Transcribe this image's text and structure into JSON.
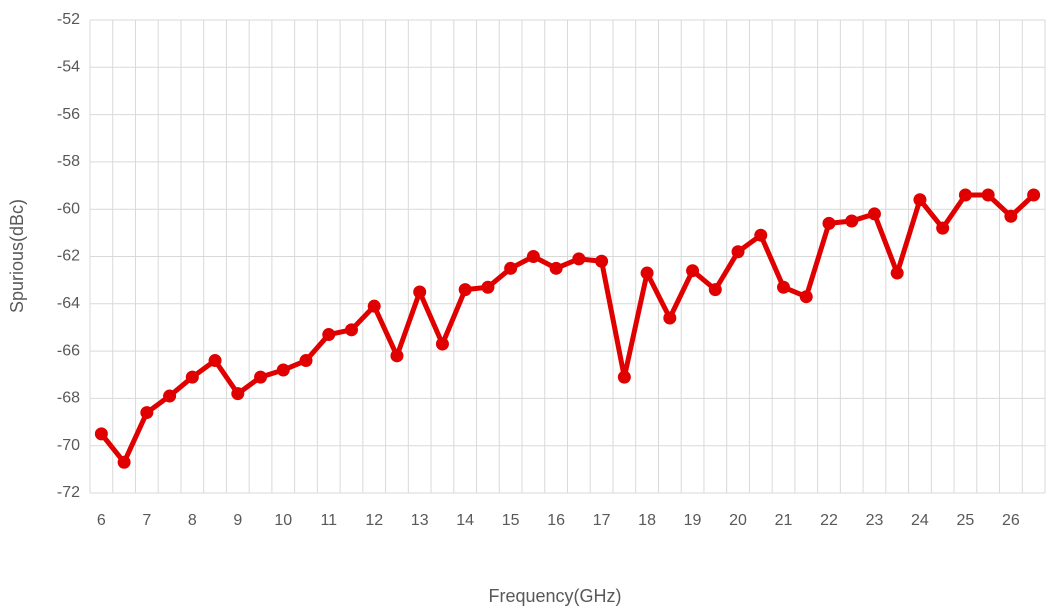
{
  "chart_data": {
    "type": "line",
    "x_label": "Frequency(GHz)",
    "y_label": "Spurious(dBc)",
    "categories": [
      "6",
      null,
      "7",
      null,
      "8",
      null,
      "9",
      null,
      "10",
      null,
      "11",
      null,
      "12",
      null,
      "13",
      null,
      "14",
      null,
      "15",
      null,
      "16",
      null,
      "17",
      null,
      "18",
      null,
      "19",
      null,
      "20",
      null,
      "21",
      null,
      "22",
      null,
      "23",
      null,
      "24",
      null,
      "25",
      null,
      "26",
      null
    ],
    "series": [
      {
        "name": "Spurious",
        "color": "#e00000",
        "values": [
          -69.5,
          -70.7,
          -68.6,
          -67.9,
          -67.1,
          -66.4,
          -67.8,
          -67.1,
          -66.8,
          -66.4,
          -65.3,
          -65.1,
          -64.1,
          -66.2,
          -63.5,
          -65.7,
          -63.4,
          -63.3,
          -62.5,
          -62.0,
          -62.5,
          -62.1,
          -62.2,
          -67.1,
          -62.7,
          -64.6,
          -62.6,
          -63.4,
          -61.8,
          -61.1,
          -63.3,
          -63.7,
          -60.6,
          -60.5,
          -60.2,
          -62.7,
          -59.6,
          -60.8,
          -59.4,
          -59.4,
          -60.3,
          -59.4
        ]
      }
    ],
    "ylim": [
      -72,
      -52
    ],
    "yticks": [
      -72,
      -70,
      -68,
      -66,
      -64,
      -62,
      -60,
      -58,
      -56,
      -54,
      -52
    ],
    "grid": true
  }
}
